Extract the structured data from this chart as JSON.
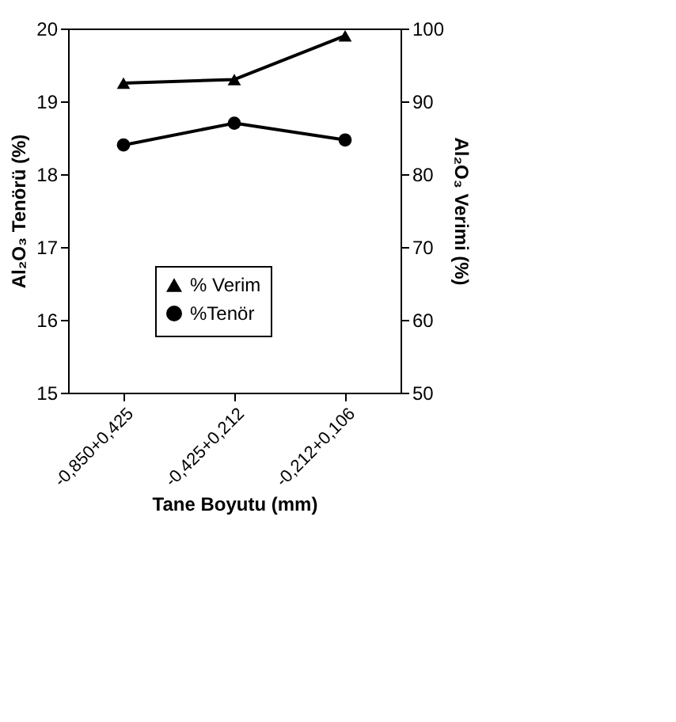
{
  "chart_data": {
    "type": "line",
    "xlabel": "Tane Boyutu (mm)",
    "ylabel": "Al₂O₃ Tenörü (%)",
    "y2label": "Al₂O₃ Verimi (%)",
    "categories": [
      "-0,850+0,425",
      "-0,425+0,212",
      "-0,212+0,106"
    ],
    "ylim": [
      15,
      20
    ],
    "yticks": [
      15,
      16,
      17,
      18,
      19,
      20
    ],
    "y2lim": [
      50,
      100
    ],
    "y2ticks": [
      50,
      60,
      70,
      80,
      90,
      100
    ],
    "legend": "bottom",
    "grid": false,
    "series": [
      {
        "name": "% Verim",
        "color": "#000000",
        "values": [
          92.5,
          93,
          99
        ],
        "axis": "y2",
        "marker": "triangle"
      },
      {
        "name": "%Tenör",
        "color": "#000000",
        "values": [
          18.4,
          18.7,
          18.47
        ],
        "marker": "circle"
      }
    ]
  }
}
